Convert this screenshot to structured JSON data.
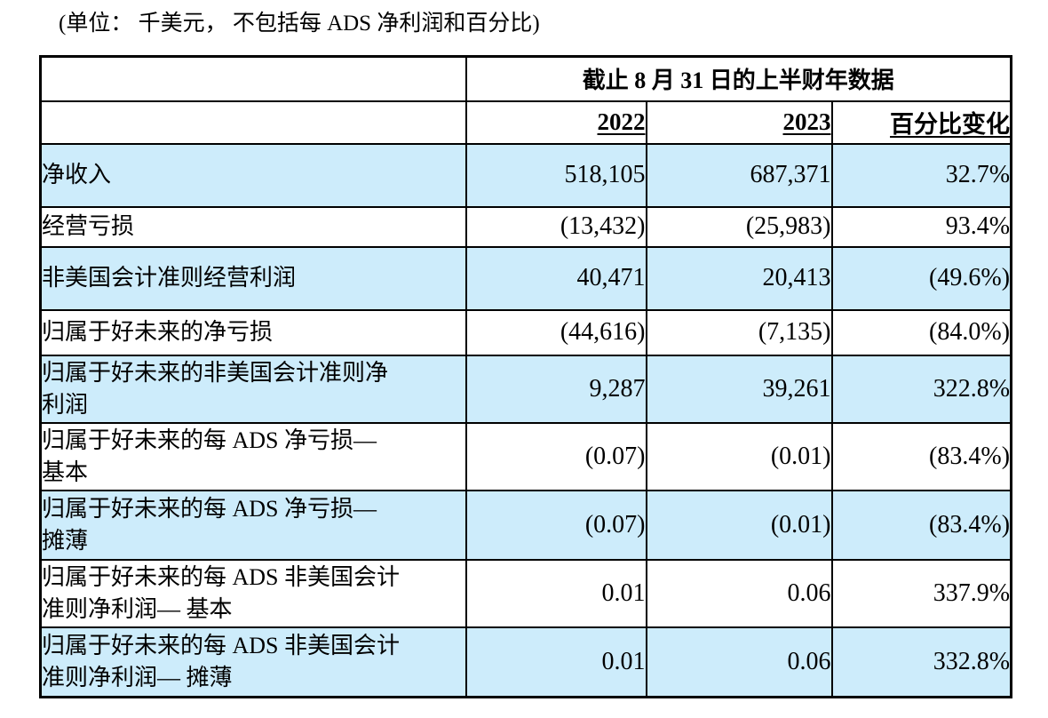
{
  "caption": "(单位： 千美元， 不包括每 ADS 净利润和百分比)",
  "table": {
    "header_title": "截止 8 月 31 日的上半财年数据",
    "columns": [
      "2022",
      "2023",
      "百分比变化"
    ],
    "rows": [
      {
        "label": "净收入",
        "y2022": "518,105",
        "y2023": "687,371",
        "change": "32.7%"
      },
      {
        "label": "经营亏损",
        "y2022": "(13,432)",
        "y2023": "(25,983)",
        "change": "93.4%"
      },
      {
        "label": "非美国会计准则经营利润",
        "y2022": "40,471",
        "y2023": "20,413",
        "change": "(49.6%)"
      },
      {
        "label": "归属于好未来的净亏损",
        "y2022": "(44,616)",
        "y2023": "(7,135)",
        "change": "(84.0%)"
      },
      {
        "label": "归属于好未来的非美国会计准则净\n利润",
        "y2022": "9,287",
        "y2023": "39,261",
        "change": "322.8%"
      },
      {
        "label": "归属于好未来的每 ADS 净亏损—\n基本",
        "y2022": "(0.07)",
        "y2023": "(0.01)",
        "change": "(83.4%)"
      },
      {
        "label": "归属于好未来的每 ADS 净亏损—\n摊薄",
        "y2022": "(0.07)",
        "y2023": "(0.01)",
        "change": "(83.4%)"
      },
      {
        "label": "归属于好未来的每 ADS 非美国会计\n准则净利润— 基本",
        "y2022": "0.01",
        "y2023": "0.06",
        "change": "337.9%"
      },
      {
        "label": "归属于好未来的每 ADS 非美国会计\n准则净利润— 摊薄",
        "y2022": "0.01",
        "y2023": "0.06",
        "change": "332.8%"
      }
    ]
  },
  "colors": {
    "highlight_row_bg": "#cdecfb",
    "border": "#000000",
    "text": "#000000",
    "background": "#ffffff"
  }
}
